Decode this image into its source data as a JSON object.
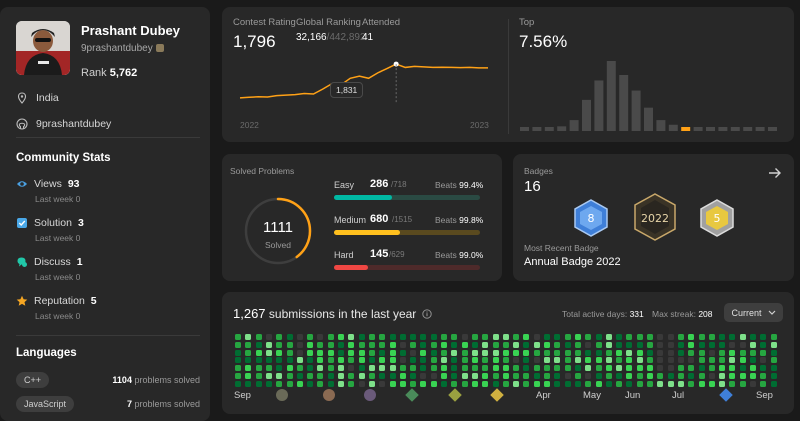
{
  "profile": {
    "name": "Prashant Dubey",
    "handle": "9prashantdubey",
    "rank_label": "Rank",
    "rank_value": "5,762",
    "location": "India",
    "github": "9prashantdubey"
  },
  "community": {
    "title": "Community Stats",
    "items": [
      {
        "label": "Views",
        "value": "93",
        "sub": "Last week",
        "sub_value": "0",
        "icon": "eye-icon",
        "color": "#4a9fe0"
      },
      {
        "label": "Solution",
        "value": "3",
        "sub": "Last week",
        "sub_value": "0",
        "icon": "check-square-icon",
        "color": "#4aa8e8"
      },
      {
        "label": "Discuss",
        "value": "1",
        "sub": "Last week",
        "sub_value": "0",
        "icon": "chat-icon",
        "color": "#21c7a8"
      },
      {
        "label": "Reputation",
        "value": "5",
        "sub": "Last week",
        "sub_value": "0",
        "icon": "star-icon",
        "color": "#f5a623"
      }
    ]
  },
  "languages": {
    "title": "Languages",
    "items": [
      {
        "name": "C++",
        "count": "1104",
        "suffix": "problems solved"
      },
      {
        "name": "JavaScript",
        "count": "7",
        "suffix": "problems solved"
      }
    ]
  },
  "contest": {
    "rating_label": "Contest Rating",
    "rating": "1,796",
    "ranking_label": "Global Ranking",
    "ranking": "32,166",
    "ranking_total": "/442,892",
    "attended_label": "Attended",
    "attended": "41",
    "tooltip": "1,831",
    "year_start": "2022",
    "year_end": "2023",
    "top_label": "Top",
    "top_value": "7.56%",
    "line_color": "#ffa116",
    "rating_series": [
      1520,
      1525,
      1530,
      1528,
      1540,
      1545,
      1550,
      1560,
      1555,
      1600,
      1650,
      1640,
      1700,
      1720,
      1700,
      1750,
      1790,
      1831,
      1800,
      1810,
      1805,
      1800,
      1802,
      1800,
      1798,
      1800,
      1796,
      1796
    ],
    "histogram": [
      2,
      3,
      4,
      6,
      14,
      40,
      65,
      90,
      72,
      52,
      30,
      14,
      8,
      5,
      4,
      3,
      3,
      3,
      2,
      2,
      2
    ],
    "highlight_index": 13
  },
  "solved": {
    "title": "Solved Problems",
    "total": "1111",
    "total_label": "Solved",
    "progress": 0.4,
    "items": [
      {
        "name": "Easy",
        "count": "286",
        "total": "/718",
        "beats_label": "Beats",
        "beats": "99.4%",
        "fraction": 0.398,
        "color": "#00b8a3",
        "bg": "#2a4a43"
      },
      {
        "name": "Medium",
        "count": "680",
        "total": "/1515",
        "beats_label": "Beats",
        "beats": "99.8%",
        "fraction": 0.449,
        "color": "#ffc01e",
        "bg": "#5a4a1f"
      },
      {
        "name": "Hard",
        "count": "145",
        "total": "/629",
        "beats_label": "Beats",
        "beats": "99.0%",
        "fraction": 0.23,
        "color": "#ef4743",
        "bg": "#4e2a2a"
      }
    ]
  },
  "badges": {
    "title": "Badges",
    "count": "16",
    "recent_label": "Most Recent Badge",
    "recent_name": "Annual Badge 2022"
  },
  "submissions": {
    "count": "1,267",
    "label": "submissions in the last year",
    "active_days_label": "Total active days:",
    "active_days": "331",
    "max_streak_label": "Max streak:",
    "max_streak": "208",
    "dropdown": "Current",
    "months": [
      "Sep",
      "Apr",
      "May",
      "Jun",
      "Jul",
      "Sep"
    ]
  }
}
